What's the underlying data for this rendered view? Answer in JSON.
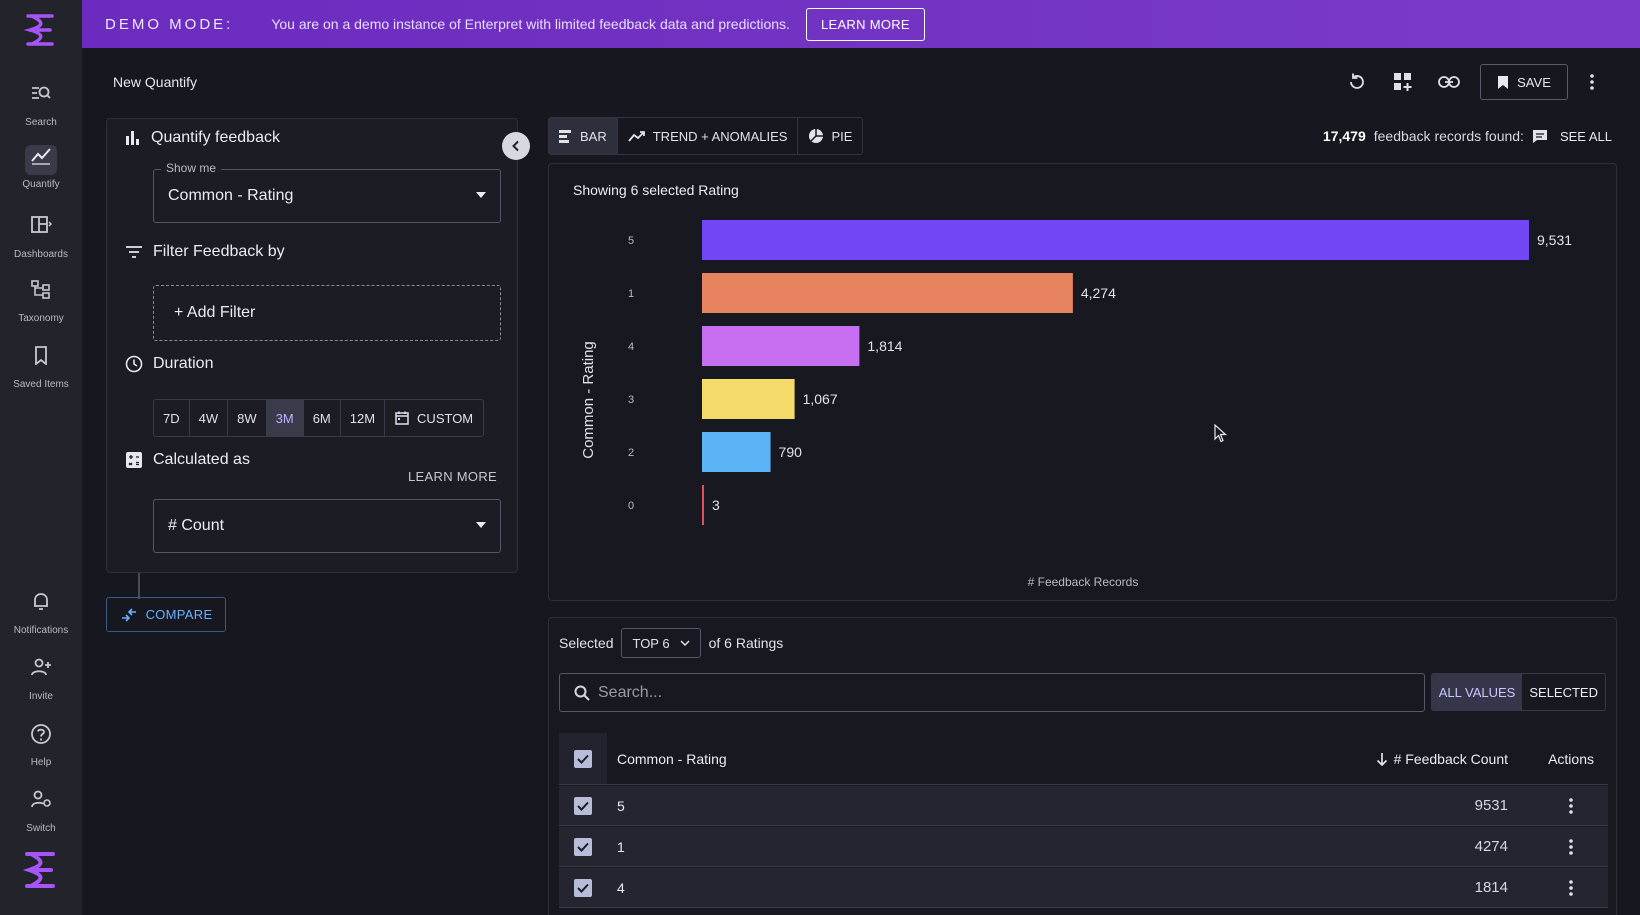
{
  "banner": {
    "title": "DEMO MODE:",
    "text": "You are on a demo instance of Enterpret with limited feedback data and predictions.",
    "button": "LEARN MORE"
  },
  "sidebar": {
    "items": [
      {
        "label": "Search",
        "icon": "search-icon"
      },
      {
        "label": "Quantify",
        "icon": "trend-icon"
      },
      {
        "label": "Dashboards",
        "icon": "dashboard-icon"
      },
      {
        "label": "Taxonomy",
        "icon": "taxonomy-icon"
      },
      {
        "label": "Saved Items",
        "icon": "bookmark-icon"
      },
      {
        "label": "Notifications",
        "icon": "bell-icon"
      },
      {
        "label": "Invite",
        "icon": "add-user-icon"
      },
      {
        "label": "Help",
        "icon": "help-icon"
      },
      {
        "label": "Switch",
        "icon": "switch-icon"
      }
    ]
  },
  "header": {
    "title": "New Quantify",
    "save_label": "SAVE"
  },
  "config": {
    "quantify_heading": "Quantify feedback",
    "show_me_legend": "Show me",
    "show_me_value": "Common - Rating",
    "filter_heading": "Filter Feedback by",
    "add_filter": "+ Add Filter",
    "duration_heading": "Duration",
    "durations": [
      "7D",
      "4W",
      "8W",
      "3M",
      "6M",
      "12M"
    ],
    "duration_selected": "3M",
    "custom_label": "CUSTOM",
    "calc_heading": "Calculated as",
    "learn_more": "LEARN MORE",
    "calc_value": "# Count",
    "compare_label": "COMPARE"
  },
  "view_tabs": {
    "bar": "BAR",
    "trend": "TREND + ANOMALIES",
    "pie": "PIE"
  },
  "records": {
    "count": "17,479",
    "text": "feedback records found:",
    "see_all": "SEE ALL"
  },
  "chart_data": {
    "type": "bar",
    "orientation": "horizontal",
    "title": "Showing 6 selected Rating",
    "categories": [
      "5",
      "1",
      "4",
      "3",
      "2",
      "0"
    ],
    "values": [
      9531,
      4274,
      1814,
      1067,
      790,
      3
    ],
    "value_labels": [
      "9,531",
      "4,274",
      "1,814",
      "1,067",
      "790",
      "3"
    ],
    "colors": [
      "#7346f5",
      "#e8835f",
      "#c86ef0",
      "#f5dc6a",
      "#5ab4f5",
      "#e05060"
    ],
    "xlabel": "# Feedback Records",
    "ylabel": "Common - Rating",
    "xlim": [
      0,
      9531
    ]
  },
  "table": {
    "selected_label": "Selected",
    "top_value": "TOP 6",
    "of_label": "of 6 Ratings",
    "search_placeholder": "Search...",
    "seg_all": "ALL VALUES",
    "seg_selected": "SELECTED",
    "col_name": "Common - Rating",
    "col_count": "# Feedback Count",
    "col_actions": "Actions",
    "rows": [
      {
        "name": "5",
        "count": "9531"
      },
      {
        "name": "1",
        "count": "4274"
      },
      {
        "name": "4",
        "count": "1814"
      }
    ]
  }
}
